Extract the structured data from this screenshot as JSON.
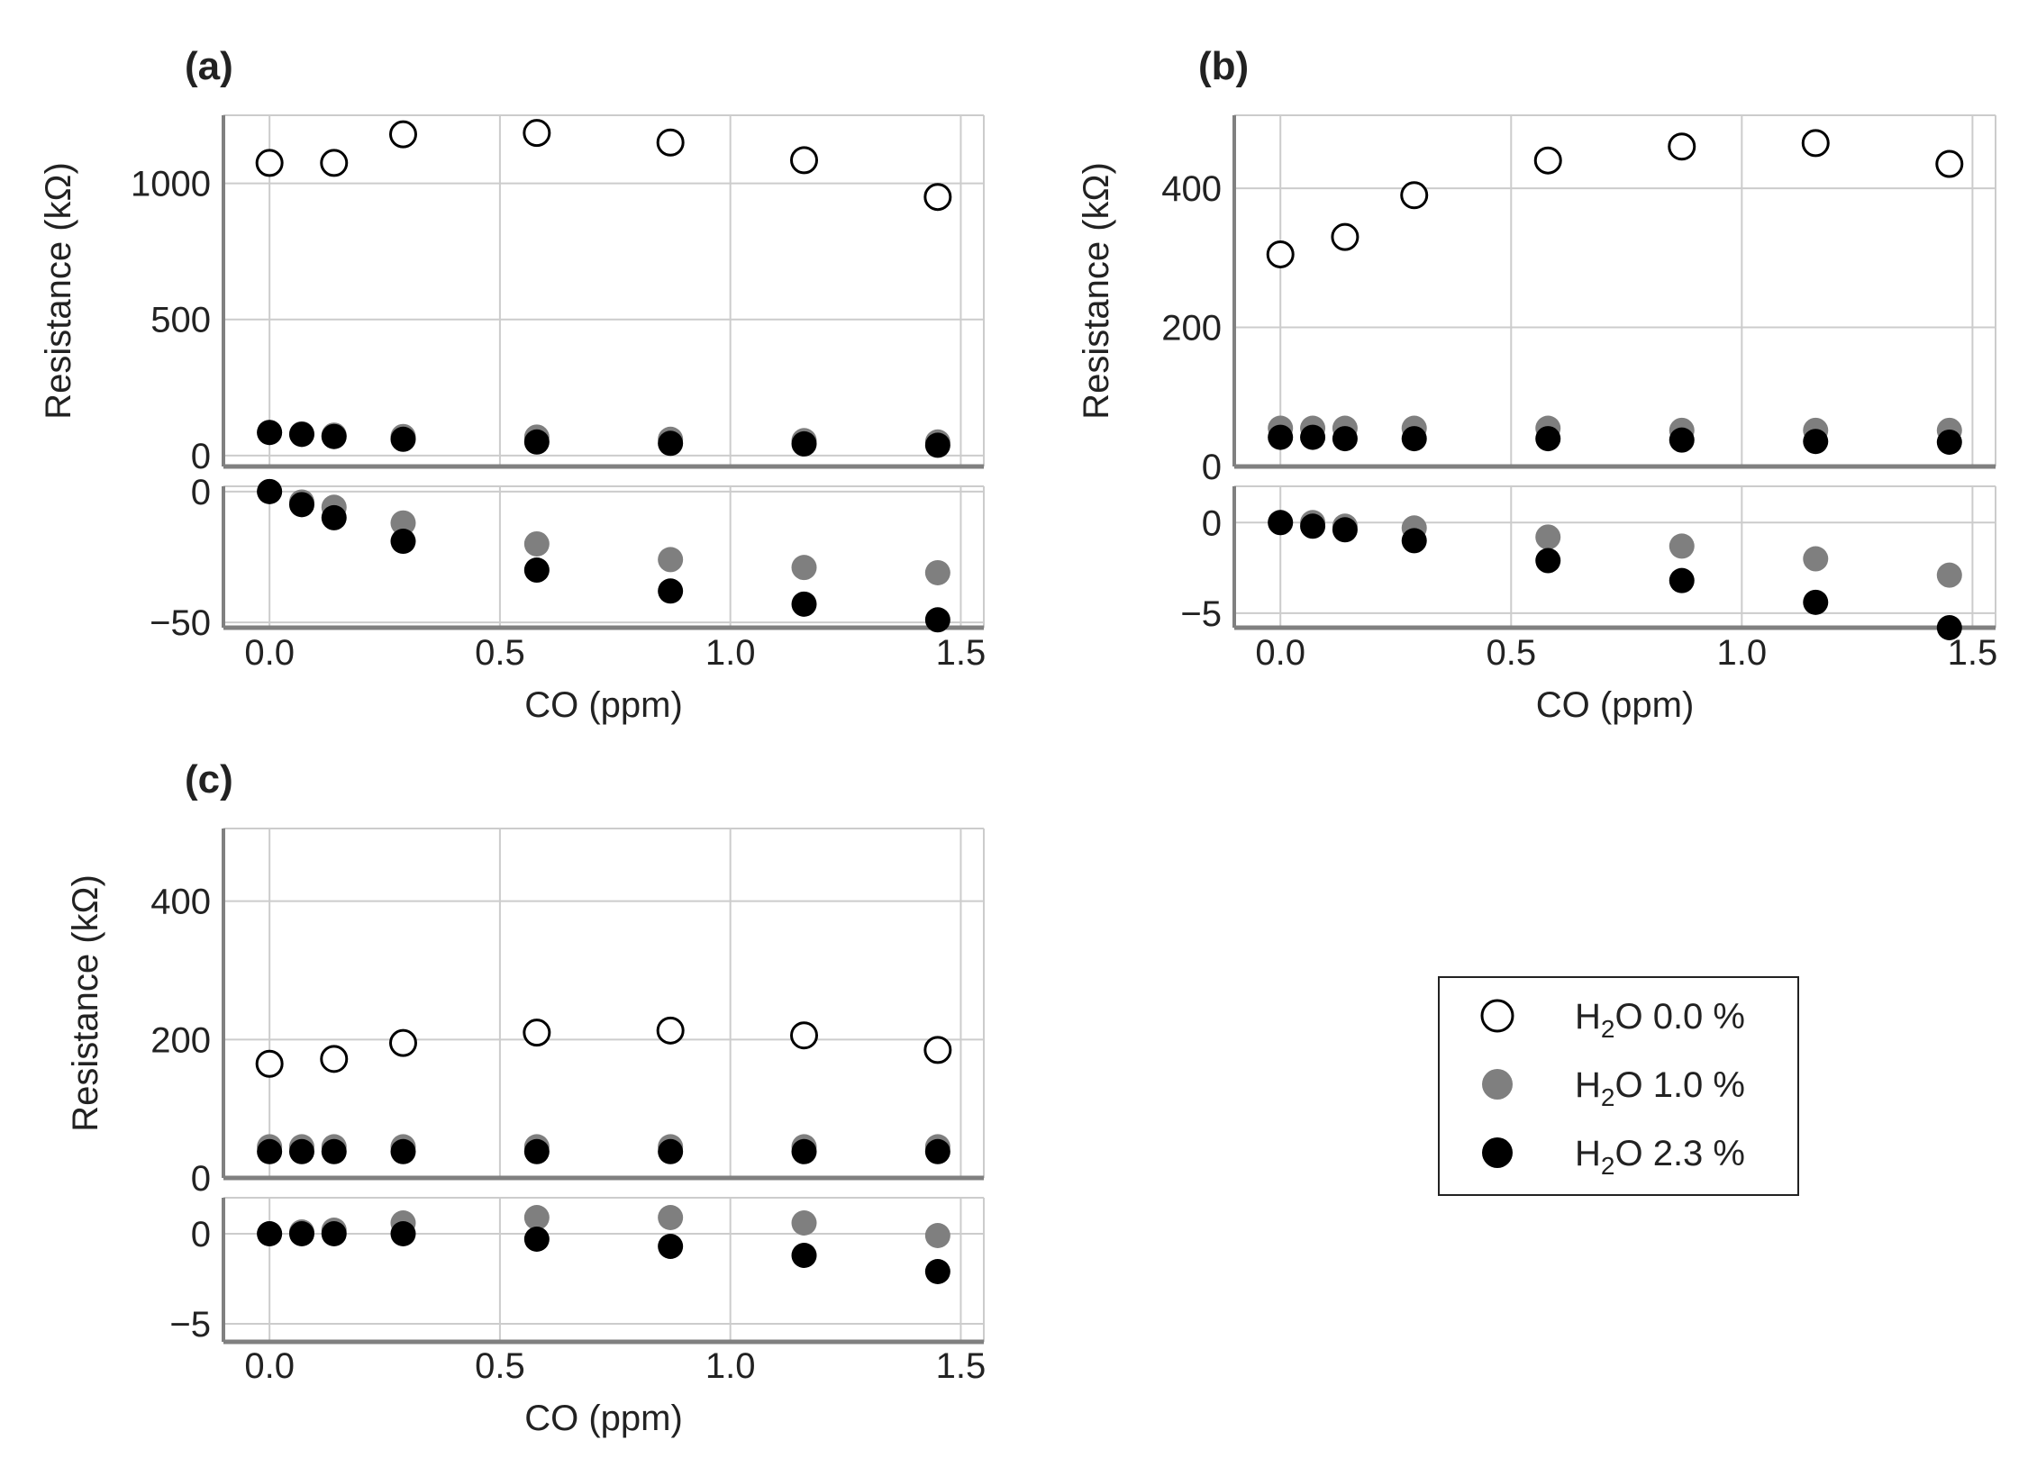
{
  "chart_data": [
    {
      "type": "scatter",
      "panel": "(a)",
      "xlabel": "CO (ppm)",
      "ylabel": "Resistance (kΩ)",
      "xlim": [
        -0.1,
        1.55
      ],
      "xticks": [
        "0.0",
        "0.5",
        "1.0",
        "1.5"
      ],
      "x": [
        0.0,
        0.07,
        0.14,
        0.29,
        0.58,
        0.87,
        1.16,
        1.45
      ],
      "top": {
        "ylim": [
          -40,
          1250
        ],
        "yticks": [
          0,
          500,
          1000
        ],
        "series": [
          {
            "name": "H2O 0.0 %",
            "values": [
              1075,
              1075,
              1180,
              1185,
              1150,
              1085,
              950
            ],
            "x": [
              0.0,
              0.14,
              0.29,
              0.58,
              0.87,
              1.16,
              1.45
            ]
          },
          {
            "name": "H2O 1.0 %",
            "values": [
              85,
              80,
              75,
              70,
              68,
              60,
              55,
              50
            ]
          },
          {
            "name": "H2O 2.3 %",
            "values": [
              85,
              78,
              70,
              60,
              50,
              45,
              43,
              38
            ]
          }
        ]
      },
      "bottom": {
        "ylim": [
          -52,
          2
        ],
        "yticks": [
          -50,
          0
        ],
        "series": [
          {
            "name": "H2O 1.0 %",
            "values": [
              0,
              -4,
              -6,
              -12,
              -20,
              -26,
              -29,
              -31
            ]
          },
          {
            "name": "H2O 2.3 %",
            "values": [
              0,
              -5,
              -10,
              -19,
              -30,
              -38,
              -43,
              -49
            ]
          }
        ]
      }
    },
    {
      "type": "scatter",
      "panel": "(b)",
      "xlabel": "CO (ppm)",
      "ylabel": "Resistance (kΩ)",
      "xlim": [
        -0.1,
        1.55
      ],
      "xticks": [
        "0.0",
        "0.5",
        "1.0",
        "1.5"
      ],
      "x": [
        0.0,
        0.07,
        0.14,
        0.29,
        0.58,
        0.87,
        1.16,
        1.45
      ],
      "top": {
        "ylim": [
          0,
          505
        ],
        "yticks": [
          0,
          200,
          400
        ],
        "series": [
          {
            "name": "H2O 0.0 %",
            "values": [
              305,
              330,
              390,
              440,
              460,
              465,
              435
            ],
            "x": [
              0.0,
              0.14,
              0.29,
              0.58,
              0.87,
              1.16,
              1.45
            ]
          },
          {
            "name": "H2O 1.0 %",
            "values": [
              55,
              55,
              55,
              55,
              55,
              52,
              52,
              52
            ]
          },
          {
            "name": "H2O 2.3 %",
            "values": [
              42,
              42,
              40,
              40,
              40,
              38,
              36,
              35
            ]
          }
        ]
      },
      "bottom": {
        "ylim": [
          -5.8,
          2
        ],
        "yticks": [
          -5,
          0
        ],
        "series": [
          {
            "name": "H2O 1.0 %",
            "values": [
              0,
              0,
              -0.2,
              -0.3,
              -0.8,
              -1.3,
              -2.0,
              -2.9
            ]
          },
          {
            "name": "H2O 2.3 %",
            "values": [
              0,
              -0.2,
              -0.4,
              -1.0,
              -2.1,
              -3.2,
              -4.4,
              -5.8
            ]
          }
        ]
      }
    },
    {
      "type": "scatter",
      "panel": "(c)",
      "xlabel": "CO (ppm)",
      "ylabel": "Resistance (kΩ)",
      "xlim": [
        -0.1,
        1.55
      ],
      "xticks": [
        "0.0",
        "0.5",
        "1.0",
        "1.5"
      ],
      "x": [
        0.0,
        0.07,
        0.14,
        0.29,
        0.58,
        0.87,
        1.16,
        1.45
      ],
      "top": {
        "ylim": [
          0,
          505
        ],
        "yticks": [
          0,
          200,
          400
        ],
        "series": [
          {
            "name": "H2O 0.0 %",
            "values": [
              165,
              172,
              195,
              210,
              213,
              206,
              185
            ],
            "x": [
              0.0,
              0.14,
              0.29,
              0.58,
              0.87,
              1.16,
              1.45
            ]
          },
          {
            "name": "H2O 1.0 %",
            "values": [
              45,
              45,
              45,
              45,
              45,
              45,
              45,
              45
            ]
          },
          {
            "name": "H2O 2.3 %",
            "values": [
              38,
              38,
              38,
              38,
              38,
              38,
              38,
              38
            ]
          }
        ]
      },
      "bottom": {
        "ylim": [
          -6,
          2
        ],
        "yticks": [
          -5,
          0
        ],
        "series": [
          {
            "name": "H2O 1.0 %",
            "values": [
              0,
              0.1,
              0.2,
              0.6,
              0.9,
              0.9,
              0.6,
              -0.1
            ]
          },
          {
            "name": "H2O 2.3 %",
            "values": [
              0,
              0,
              0,
              0,
              -0.3,
              -0.7,
              -1.2,
              -2.1
            ]
          }
        ]
      }
    }
  ],
  "legend": {
    "entries": [
      {
        "prefix": "H",
        "sub": "2",
        "suffix": "O 0.0 %",
        "style": "open"
      },
      {
        "prefix": "H",
        "sub": "2",
        "suffix": "O 1.0 %",
        "style": "gray"
      },
      {
        "prefix": "H",
        "sub": "2",
        "suffix": "O 2.3 %",
        "style": "black"
      }
    ]
  },
  "colors": {
    "open_fill": "#ffffff",
    "gray": "#7f7f7f",
    "black": "#000000",
    "grid": "#cccccc",
    "axis": "#808080"
  }
}
